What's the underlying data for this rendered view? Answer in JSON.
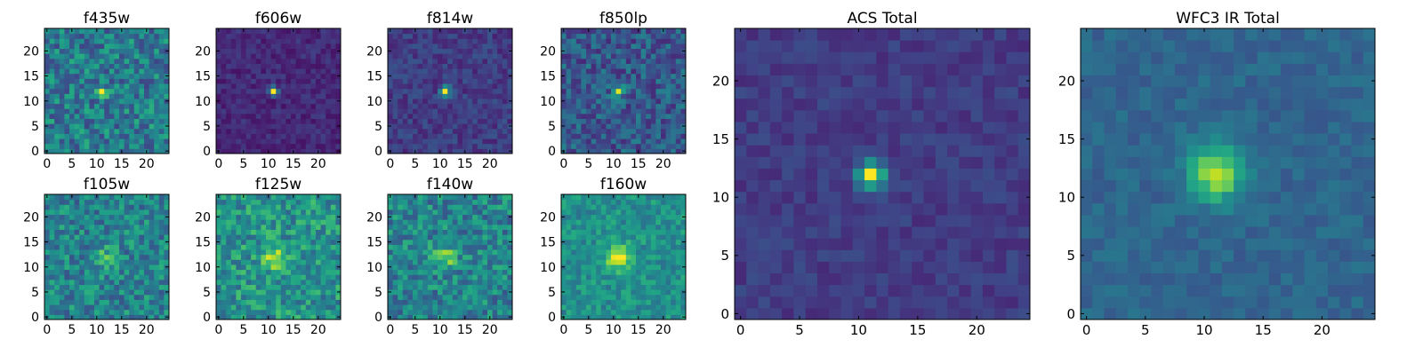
{
  "chart_data": [
    {
      "type": "heatmap",
      "title": "f435w",
      "colormap": "viridis",
      "size": 25,
      "seed": 11,
      "sigma": 0.7,
      "amp": 0.5,
      "noise": 0.42,
      "base": 0.42,
      "bias": [
        0.0,
        0.0
      ],
      "xticks": [
        0,
        5,
        10,
        15,
        20
      ],
      "yticks": [
        0,
        5,
        10,
        15,
        20
      ]
    },
    {
      "type": "heatmap",
      "title": "f606w",
      "colormap": "viridis",
      "size": 25,
      "seed": 22,
      "sigma": 0.6,
      "amp": 0.85,
      "noise": 0.14,
      "base": 0.12,
      "bias": [
        0.0,
        0.0
      ],
      "xticks": [
        0,
        5,
        10,
        15,
        20
      ],
      "yticks": [
        0,
        5,
        10,
        15,
        20
      ]
    },
    {
      "type": "heatmap",
      "title": "f814w",
      "colormap": "viridis",
      "size": 25,
      "seed": 33,
      "sigma": 0.7,
      "amp": 0.8,
      "noise": 0.18,
      "base": 0.18,
      "bias": [
        0.0,
        0.0
      ],
      "xticks": [
        0,
        5,
        10,
        15,
        20
      ],
      "yticks": [
        0,
        5,
        10,
        15,
        20
      ]
    },
    {
      "type": "heatmap",
      "title": "f850lp",
      "colormap": "viridis",
      "size": 25,
      "seed": 44,
      "sigma": 0.8,
      "amp": 0.55,
      "noise": 0.32,
      "base": 0.28,
      "bias": [
        0.0,
        0.0
      ],
      "xticks": [
        0,
        5,
        10,
        15,
        20
      ],
      "yticks": [
        0,
        5,
        10,
        15,
        20
      ]
    },
    {
      "type": "heatmap",
      "title": "f105w",
      "colormap": "viridis",
      "size": 25,
      "seed": 55,
      "sigma": 1.5,
      "amp": 0.25,
      "noise": 0.38,
      "base": 0.45,
      "bias": [
        0.0,
        0.0
      ],
      "xticks": [
        0,
        5,
        10,
        15,
        20
      ],
      "yticks": [
        0,
        5,
        10,
        15,
        20
      ]
    },
    {
      "type": "heatmap",
      "title": "f125w",
      "colormap": "viridis",
      "size": 25,
      "seed": 66,
      "sigma": 1.6,
      "amp": 0.35,
      "noise": 0.38,
      "base": 0.52,
      "bias": [
        0.0,
        0.0
      ],
      "xticks": [
        0,
        5,
        10,
        15,
        20
      ],
      "yticks": [
        0,
        5,
        10,
        15,
        20
      ]
    },
    {
      "type": "heatmap",
      "title": "f140w",
      "colormap": "viridis",
      "size": 25,
      "seed": 77,
      "sigma": 1.6,
      "amp": 0.35,
      "noise": 0.38,
      "base": 0.45,
      "bias": [
        0.0,
        0.0
      ],
      "xticks": [
        0,
        5,
        10,
        15,
        20
      ],
      "yticks": [
        0,
        5,
        10,
        15,
        20
      ]
    },
    {
      "type": "heatmap",
      "title": "f160w",
      "colormap": "viridis",
      "size": 25,
      "seed": 88,
      "sigma": 1.7,
      "amp": 0.5,
      "noise": 0.26,
      "base": 0.5,
      "bias": [
        0.0,
        0.0
      ],
      "xticks": [
        0,
        5,
        10,
        15,
        20
      ],
      "yticks": [
        0,
        5,
        10,
        15,
        20
      ]
    },
    {
      "type": "heatmap",
      "title": "ACS Total",
      "colormap": "viridis",
      "size": 25,
      "seed": 99,
      "sigma": 0.75,
      "amp": 0.85,
      "noise": 0.12,
      "base": 0.18,
      "bias": [
        0.0,
        0.0
      ],
      "xticks": [
        0,
        5,
        10,
        15,
        20
      ],
      "yticks": [
        0,
        5,
        10,
        15,
        20
      ]
    },
    {
      "type": "heatmap",
      "title": "WFC3 IR Total",
      "colormap": "viridis",
      "size": 25,
      "seed": 111,
      "sigma": 1.6,
      "amp": 0.55,
      "noise": 0.12,
      "base": 0.33,
      "bias": [
        0.0,
        0.0
      ],
      "xticks": [
        0,
        5,
        10,
        15,
        20
      ],
      "yticks": [
        0,
        5,
        10,
        15,
        20
      ]
    }
  ],
  "source_center": [
    11,
    12
  ]
}
